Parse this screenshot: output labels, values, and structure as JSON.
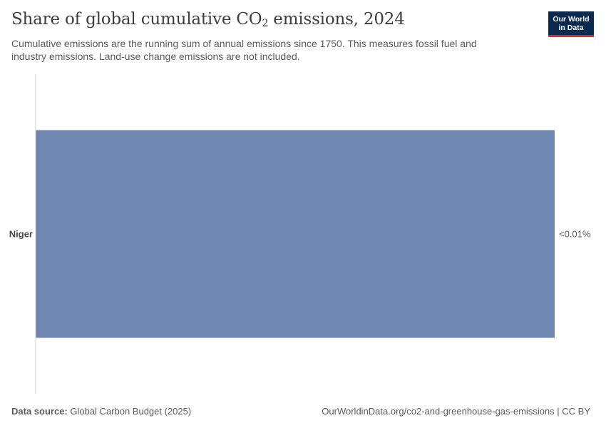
{
  "header": {
    "title_main": "Share of global cumulative CO",
    "title_sub": "2",
    "title_tail": " emissions, 2024",
    "subtitle": "Cumulative emissions are the running sum of annual emissions since 1750. This measures fossil fuel and industry emissions. Land-use change emissions are not included.",
    "logo_line1": "Our World",
    "logo_line2": "in Data"
  },
  "chart_data": {
    "type": "bar",
    "orientation": "horizontal",
    "categories": [
      "Niger"
    ],
    "values": [
      0.01
    ],
    "value_labels": [
      "<0.01%"
    ],
    "unit": "%",
    "bar_color": "#6f87b0",
    "xlim": [
      0,
      0.01
    ],
    "grid": false
  },
  "footer": {
    "source_label": "Data source:",
    "source_text": " Global Carbon Budget (2025)",
    "url_text": "OurWorldinData.org/co2-and-greenhouse-gas-emissions | CC BY"
  },
  "colors": {
    "bar": "#6f87b0",
    "axis": "#cfcfcf",
    "logo_bg": "#0b2a4e",
    "logo_accent": "#d42a2a"
  }
}
